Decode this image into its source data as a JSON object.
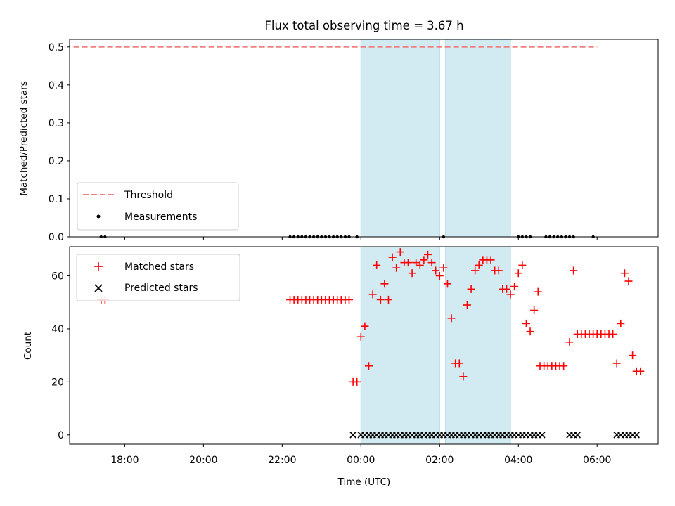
{
  "chart_data": {
    "title": "Flux total observing time = 3.67 h",
    "xlabel": "Time (UTC)",
    "x_axis_ticks": [
      "18:00",
      "20:00",
      "22:00",
      "00:00",
      "02:00",
      "04:00",
      "06:00"
    ],
    "shaded_intervals_hours": [
      [
        24.0,
        26.0
      ],
      [
        26.15,
        27.8
      ]
    ],
    "colors": {
      "threshold": "#f08080",
      "matched": "#ff0000",
      "predicted": "#000000",
      "shading": "#add8e6",
      "measurements": "#000000"
    },
    "panels": [
      {
        "type": "line+scatter",
        "ylabel": "Matched/Predicted stars",
        "ylim": [
          0,
          0.52
        ],
        "yticks": [
          "0.0",
          "0.1",
          "0.2",
          "0.3",
          "0.4",
          "0.5"
        ],
        "legend": {
          "placement": "lower-left",
          "entries": [
            "Threshold",
            "Measurements"
          ]
        },
        "series": [
          {
            "name": "Threshold",
            "style": "dashed-line",
            "x_range": [
              16.7,
              30.0
            ],
            "value": 0.5
          },
          {
            "name": "Measurements",
            "style": "dot",
            "x": [
              17.4,
              17.5,
              22.2,
              22.3,
              22.4,
              22.5,
              22.6,
              22.7,
              22.8,
              22.9,
              23.0,
              23.1,
              23.2,
              23.3,
              23.4,
              23.5,
              23.6,
              23.7,
              23.9,
              26.1,
              28.0,
              28.1,
              28.2,
              28.3,
              28.7,
              28.8,
              28.9,
              29.0,
              29.1,
              29.2,
              29.3,
              29.4,
              29.9
            ],
            "y": 0.0
          }
        ]
      },
      {
        "type": "scatter",
        "ylabel": "Count",
        "ylim": [
          -3.5,
          71
        ],
        "yticks": [
          "0",
          "20",
          "40",
          "60"
        ],
        "legend": {
          "placement": "upper-left",
          "entries": [
            "Matched stars",
            "Predicted stars"
          ]
        },
        "series": [
          {
            "name": "Matched stars",
            "marker": "+",
            "points": [
              [
                17.4,
                51
              ],
              [
                17.5,
                51
              ],
              [
                22.2,
                51
              ],
              [
                22.3,
                51
              ],
              [
                22.4,
                51
              ],
              [
                22.5,
                51
              ],
              [
                22.6,
                51
              ],
              [
                22.7,
                51
              ],
              [
                22.8,
                51
              ],
              [
                22.9,
                51
              ],
              [
                23.0,
                51
              ],
              [
                23.1,
                51
              ],
              [
                23.2,
                51
              ],
              [
                23.3,
                51
              ],
              [
                23.4,
                51
              ],
              [
                23.5,
                51
              ],
              [
                23.6,
                51
              ],
              [
                23.7,
                51
              ],
              [
                23.8,
                20
              ],
              [
                23.9,
                20
              ],
              [
                24.0,
                37
              ],
              [
                24.1,
                41
              ],
              [
                24.2,
                26
              ],
              [
                24.3,
                53
              ],
              [
                24.4,
                64
              ],
              [
                24.5,
                51
              ],
              [
                24.6,
                57
              ],
              [
                24.7,
                51
              ],
              [
                24.8,
                67
              ],
              [
                24.9,
                63
              ],
              [
                25.0,
                69
              ],
              [
                25.1,
                65
              ],
              [
                25.2,
                65
              ],
              [
                25.3,
                61
              ],
              [
                25.4,
                65
              ],
              [
                25.5,
                64
              ],
              [
                25.6,
                66
              ],
              [
                25.7,
                68
              ],
              [
                25.8,
                65
              ],
              [
                25.9,
                62
              ],
              [
                26.0,
                60
              ],
              [
                26.1,
                63
              ],
              [
                26.2,
                57
              ],
              [
                26.3,
                44
              ],
              [
                26.4,
                27
              ],
              [
                26.5,
                27
              ],
              [
                26.6,
                22
              ],
              [
                26.7,
                49
              ],
              [
                26.8,
                55
              ],
              [
                26.9,
                62
              ],
              [
                27.0,
                64
              ],
              [
                27.1,
                66
              ],
              [
                27.2,
                66
              ],
              [
                27.3,
                66
              ],
              [
                27.4,
                62
              ],
              [
                27.5,
                62
              ],
              [
                27.6,
                55
              ],
              [
                27.7,
                55
              ],
              [
                27.8,
                53
              ],
              [
                27.9,
                56
              ],
              [
                28.0,
                61
              ],
              [
                28.1,
                64
              ],
              [
                28.2,
                42
              ],
              [
                28.3,
                39
              ],
              [
                28.4,
                47
              ],
              [
                28.5,
                54
              ],
              [
                28.55,
                26
              ],
              [
                28.65,
                26
              ],
              [
                28.75,
                26
              ],
              [
                28.85,
                26
              ],
              [
                28.95,
                26
              ],
              [
                29.05,
                26
              ],
              [
                29.15,
                26
              ],
              [
                29.3,
                35
              ],
              [
                29.4,
                62
              ],
              [
                29.5,
                38
              ],
              [
                29.6,
                38
              ],
              [
                29.7,
                38
              ],
              [
                29.8,
                38
              ],
              [
                29.9,
                38
              ],
              [
                30.0,
                38
              ],
              [
                30.1,
                38
              ],
              [
                30.2,
                38
              ],
              [
                30.3,
                38
              ],
              [
                30.4,
                38
              ],
              [
                30.5,
                27
              ],
              [
                30.6,
                42
              ],
              [
                30.7,
                61
              ],
              [
                30.8,
                58
              ],
              [
                30.9,
                30
              ],
              [
                31.0,
                24
              ],
              [
                31.1,
                24
              ]
            ]
          },
          {
            "name": "Predicted stars",
            "marker": "x",
            "x": [
              23.8,
              24.0,
              24.1,
              24.2,
              24.3,
              24.4,
              24.5,
              24.6,
              24.7,
              24.8,
              24.9,
              25.0,
              25.1,
              25.2,
              25.3,
              25.4,
              25.5,
              25.6,
              25.7,
              25.8,
              25.9,
              26.0,
              26.1,
              26.2,
              26.3,
              26.4,
              26.5,
              26.6,
              26.7,
              26.8,
              26.9,
              27.0,
              27.1,
              27.2,
              27.3,
              27.4,
              27.5,
              27.6,
              27.7,
              27.8,
              27.9,
              28.0,
              28.1,
              28.2,
              28.3,
              28.4,
              28.5,
              28.6,
              29.3,
              29.4,
              29.5,
              30.5,
              30.6,
              30.7,
              30.8,
              30.9,
              31.0
            ],
            "y": 0
          }
        ]
      }
    ]
  }
}
